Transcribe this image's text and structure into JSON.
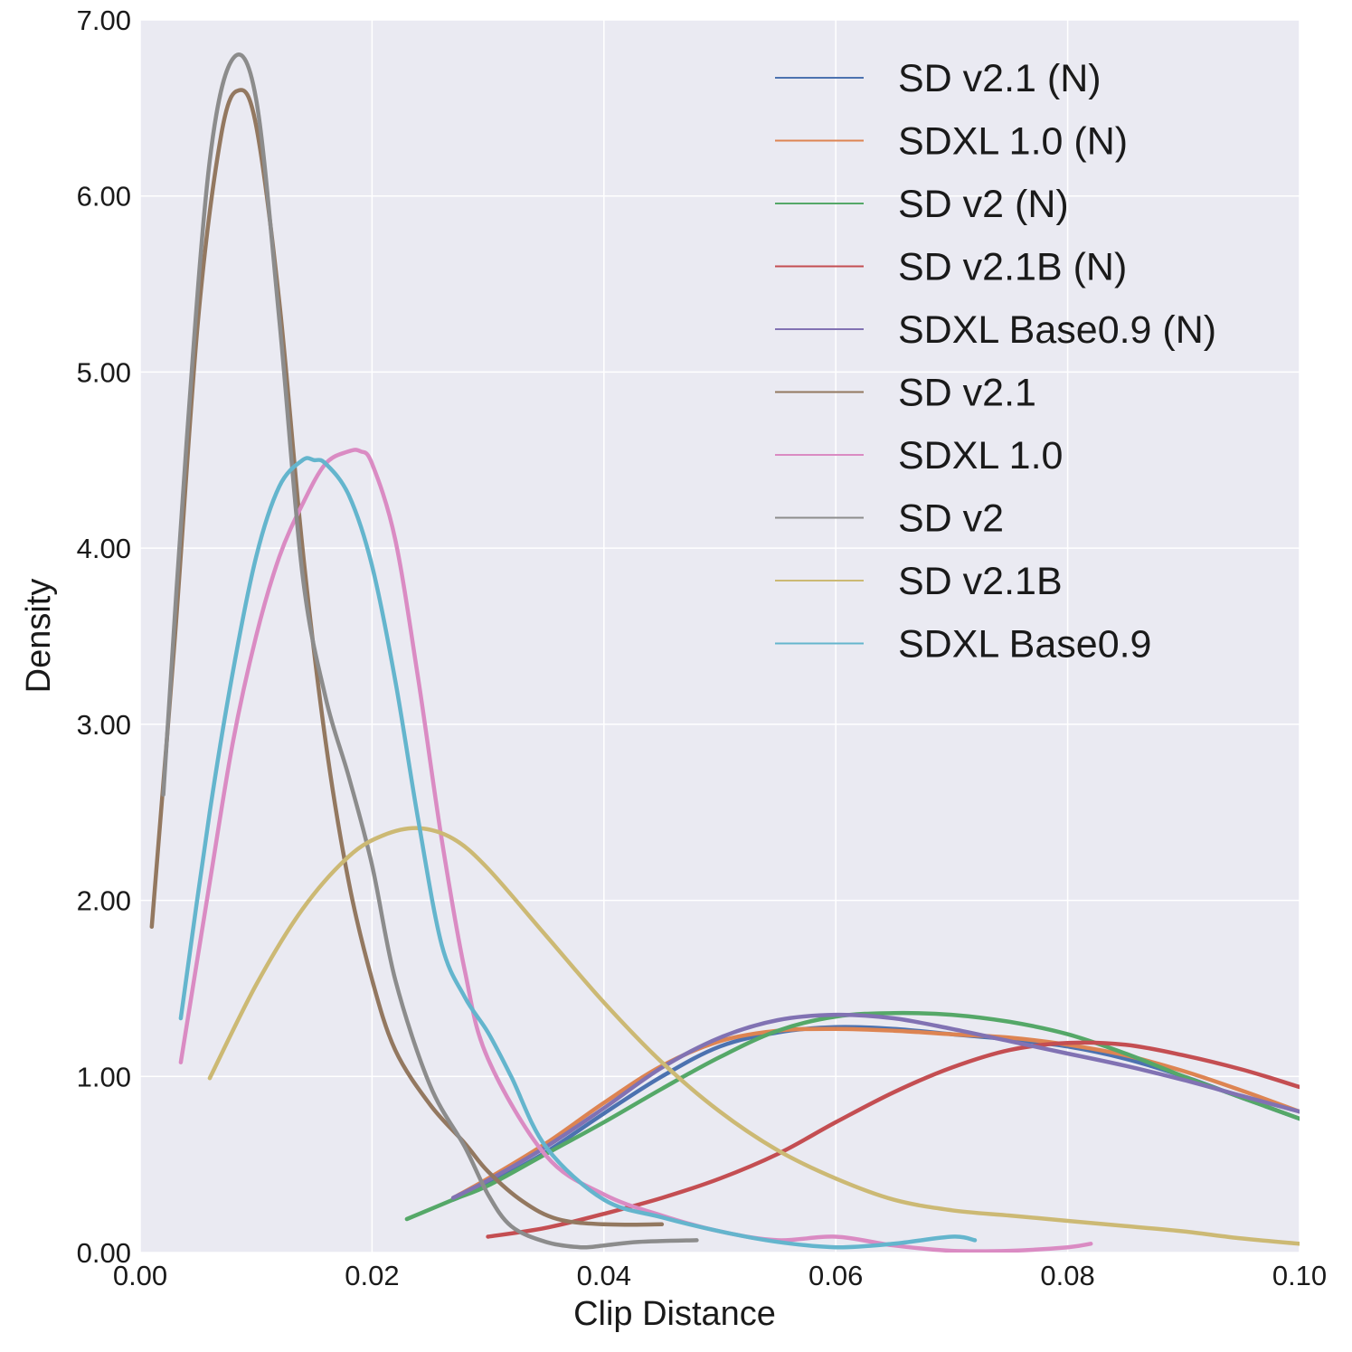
{
  "chart_data": {
    "type": "line",
    "title": "",
    "xlabel": "Clip Distance",
    "ylabel": "Density",
    "xlim": [
      0.0,
      0.1
    ],
    "ylim": [
      0.0,
      7.0
    ],
    "xticks": [
      0.0,
      0.02,
      0.04,
      0.06,
      0.08,
      0.1
    ],
    "xtick_labels": [
      "0.00",
      "0.02",
      "0.04",
      "0.06",
      "0.08",
      "0.10"
    ],
    "yticks": [
      0,
      1,
      2,
      3,
      4,
      5,
      6,
      7
    ],
    "ytick_labels": [
      "0.00",
      "1.00",
      "2.00",
      "3.00",
      "4.00",
      "5.00",
      "6.00",
      "7.00"
    ],
    "grid": true,
    "legend_position": "top-right",
    "background": "#eaeaf2",
    "series": [
      {
        "name": "SD v2.1 (N)",
        "color": "#4c72b0",
        "x": [
          0.027,
          0.03,
          0.035,
          0.04,
          0.045,
          0.05,
          0.055,
          0.06,
          0.065,
          0.07,
          0.075,
          0.08,
          0.085,
          0.09,
          0.095,
          0.1
        ],
        "y": [
          0.3,
          0.39,
          0.57,
          0.79,
          1.0,
          1.17,
          1.25,
          1.28,
          1.27,
          1.24,
          1.21,
          1.17,
          1.1,
          1.0,
          0.88,
          0.76
        ]
      },
      {
        "name": "SDXL 1.0 (N)",
        "color": "#dd8452",
        "x": [
          0.027,
          0.03,
          0.035,
          0.04,
          0.045,
          0.05,
          0.055,
          0.06,
          0.065,
          0.07,
          0.075,
          0.08,
          0.085,
          0.09,
          0.095,
          0.1
        ],
        "y": [
          0.31,
          0.42,
          0.62,
          0.85,
          1.06,
          1.2,
          1.26,
          1.27,
          1.26,
          1.24,
          1.22,
          1.18,
          1.12,
          1.03,
          0.92,
          0.8
        ]
      },
      {
        "name": "SD v2 (N)",
        "color": "#55a868",
        "x": [
          0.023,
          0.027,
          0.03,
          0.035,
          0.04,
          0.045,
          0.05,
          0.055,
          0.06,
          0.065,
          0.07,
          0.075,
          0.08,
          0.085,
          0.09,
          0.095,
          0.1
        ],
        "y": [
          0.19,
          0.3,
          0.38,
          0.56,
          0.74,
          0.93,
          1.11,
          1.26,
          1.34,
          1.36,
          1.35,
          1.31,
          1.24,
          1.13,
          1.0,
          0.88,
          0.76
        ]
      },
      {
        "name": "SD v2.1B (N)",
        "color": "#c44e52",
        "x": [
          0.03,
          0.035,
          0.04,
          0.045,
          0.05,
          0.055,
          0.06,
          0.065,
          0.07,
          0.075,
          0.08,
          0.085,
          0.09,
          0.095,
          0.1
        ],
        "y": [
          0.09,
          0.14,
          0.22,
          0.31,
          0.42,
          0.56,
          0.74,
          0.91,
          1.05,
          1.15,
          1.19,
          1.18,
          1.12,
          1.04,
          0.94
        ]
      },
      {
        "name": "SDXL Base0.9 (N)",
        "color": "#8172b3",
        "x": [
          0.027,
          0.03,
          0.035,
          0.04,
          0.045,
          0.05,
          0.055,
          0.06,
          0.065,
          0.07,
          0.075,
          0.08,
          0.085,
          0.09,
          0.095,
          0.1
        ],
        "y": [
          0.31,
          0.41,
          0.6,
          0.82,
          1.05,
          1.22,
          1.32,
          1.35,
          1.33,
          1.27,
          1.2,
          1.13,
          1.06,
          0.98,
          0.89,
          0.8
        ]
      },
      {
        "name": "SD v2.1",
        "color": "#937860",
        "x": [
          0.001,
          0.003,
          0.005,
          0.007,
          0.0085,
          0.01,
          0.012,
          0.014,
          0.016,
          0.018,
          0.02,
          0.022,
          0.025,
          0.028,
          0.03,
          0.033,
          0.036,
          0.04,
          0.045
        ],
        "y": [
          1.85,
          3.5,
          5.3,
          6.35,
          6.6,
          6.4,
          5.4,
          4.0,
          2.9,
          2.1,
          1.55,
          1.15,
          0.84,
          0.62,
          0.46,
          0.29,
          0.19,
          0.16,
          0.16
        ]
      },
      {
        "name": "SDXL 1.0",
        "color": "#da8bc3",
        "x": [
          0.0035,
          0.006,
          0.008,
          0.01,
          0.012,
          0.014,
          0.016,
          0.018,
          0.019,
          0.02,
          0.022,
          0.024,
          0.026,
          0.028,
          0.03,
          0.035,
          0.04,
          0.045,
          0.05,
          0.055,
          0.06,
          0.065,
          0.07,
          0.075,
          0.08,
          0.082
        ],
        "y": [
          1.08,
          2.1,
          2.9,
          3.5,
          3.95,
          4.25,
          4.48,
          4.55,
          4.55,
          4.48,
          4.05,
          3.25,
          2.35,
          1.6,
          1.1,
          0.55,
          0.33,
          0.21,
          0.12,
          0.07,
          0.09,
          0.04,
          0.01,
          0.01,
          0.03,
          0.05
        ]
      },
      {
        "name": "SD v2",
        "color": "#8c8c8c",
        "x": [
          0.002,
          0.004,
          0.006,
          0.008,
          0.01,
          0.012,
          0.014,
          0.016,
          0.018,
          0.02,
          0.022,
          0.025,
          0.028,
          0.03,
          0.032,
          0.035,
          0.038,
          0.04,
          0.043,
          0.048
        ],
        "y": [
          2.6,
          4.6,
          6.2,
          6.78,
          6.55,
          5.3,
          3.85,
          3.15,
          2.7,
          2.2,
          1.55,
          0.95,
          0.6,
          0.33,
          0.15,
          0.06,
          0.03,
          0.04,
          0.06,
          0.07
        ]
      },
      {
        "name": "SD v2.1B",
        "color": "#ccb974",
        "x": [
          0.006,
          0.01,
          0.014,
          0.018,
          0.021,
          0.024,
          0.027,
          0.03,
          0.035,
          0.04,
          0.045,
          0.05,
          0.055,
          0.06,
          0.065,
          0.07,
          0.075,
          0.08,
          0.085,
          0.09,
          0.095,
          0.1
        ],
        "y": [
          0.99,
          1.52,
          1.95,
          2.25,
          2.37,
          2.41,
          2.35,
          2.18,
          1.8,
          1.42,
          1.08,
          0.8,
          0.58,
          0.42,
          0.3,
          0.24,
          0.21,
          0.18,
          0.15,
          0.12,
          0.08,
          0.05
        ]
      },
      {
        "name": "SDXL Base0.9",
        "color": "#64b5cd",
        "x": [
          0.0035,
          0.006,
          0.008,
          0.01,
          0.012,
          0.014,
          0.015,
          0.016,
          0.018,
          0.02,
          0.022,
          0.024,
          0.026,
          0.028,
          0.03,
          0.032,
          0.035,
          0.04,
          0.045,
          0.05,
          0.055,
          0.06,
          0.065,
          0.07,
          0.072
        ],
        "y": [
          1.33,
          2.5,
          3.3,
          3.95,
          4.35,
          4.5,
          4.5,
          4.48,
          4.3,
          3.9,
          3.25,
          2.45,
          1.75,
          1.45,
          1.25,
          1.0,
          0.6,
          0.3,
          0.2,
          0.12,
          0.06,
          0.03,
          0.05,
          0.09,
          0.07
        ]
      }
    ]
  }
}
